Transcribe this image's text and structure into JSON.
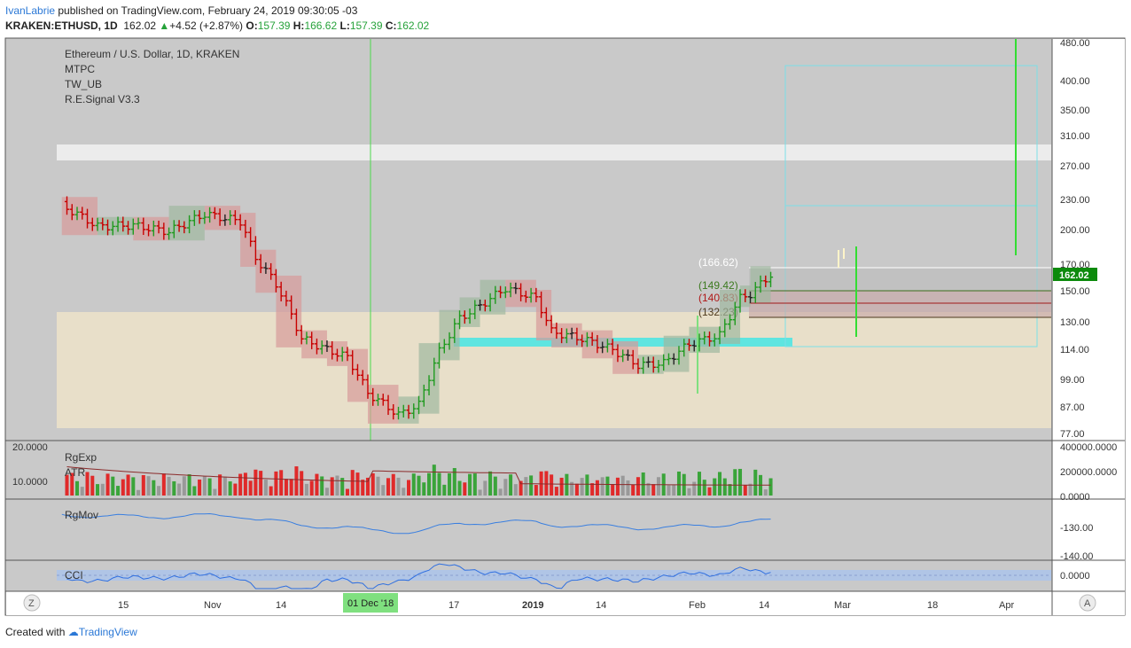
{
  "header": {
    "user": "IvanLabrie",
    "published_text": " published on TradingView.com, February 24, 2019 09:30:05 -03",
    "symbol": "KRAKEN:ETHUSD, 1D",
    "last": "162.02",
    "change_arrow": "▲",
    "change": "+4.52 (+2.87%)",
    "o_label": "O:",
    "o_value": "157.39",
    "h_label": "H:",
    "h_value": "166.62",
    "l_label": "L:",
    "l_value": "157.39",
    "c_label": "C:",
    "c_value": "162.02"
  },
  "legend": {
    "title": "Ethereum / U.S. Dollar, 1D, KRAKEN",
    "indicators": [
      "MTPC",
      "TW_UB",
      "R.E.Signal V3.3"
    ]
  },
  "price_axis": {
    "ticks": [
      "480.00",
      "400.00",
      "350.00",
      "310.00",
      "270.00",
      "230.00",
      "200.00",
      "170.00",
      "150.00",
      "130.00",
      "114.00",
      "99.00",
      "87.00",
      "77.00"
    ],
    "last_price_badge": "162.02"
  },
  "level_labels": [
    "(166.62)",
    "(149.42)",
    "(140.83)",
    "(132.23)"
  ],
  "volume_pane": {
    "names": [
      "RgExp",
      "ATR"
    ],
    "left_ticks": [
      "20.0000",
      "10.0000"
    ],
    "right_ticks": [
      "400000.0000",
      "200000.0000",
      "0.0000"
    ]
  },
  "mov_pane": {
    "name": "RgMov",
    "right_ticks": [
      "-130.00",
      "-140.00"
    ]
  },
  "cci_pane": {
    "name": "CCI",
    "right_ticks": [
      "0.0000"
    ]
  },
  "time_axis": {
    "labels": [
      "15",
      "Nov",
      "14",
      "17",
      "2019",
      "14",
      "Feb",
      "14",
      "Mar",
      "18",
      "Apr"
    ],
    "highlight_label": "01 Dec '18",
    "left_button": "Z",
    "right_button": "A"
  },
  "footer": {
    "created_with": "Created with",
    "brand": "TradingView"
  },
  "colors": {
    "up": "#1f9a1f",
    "down": "#c80000",
    "neutral": "#222222",
    "badge": "#0c8a0c",
    "cci_band": "#aac4ee",
    "line": "#3a7fe0"
  },
  "chart_data": {
    "type": "candlestick",
    "title": "Ethereum / U.S. Dollar, 1D, KRAKEN",
    "y_scale": "log",
    "ylim": [
      77,
      480
    ],
    "x_range": [
      "2018-10-07",
      "2019-04-20"
    ],
    "levels": [
      166.62,
      149.42,
      140.83,
      132.23
    ],
    "last_close": 162.02,
    "close_series": [
      {
        "date": "2018-10-08",
        "close": 224
      },
      {
        "date": "2018-10-15",
        "close": 203
      },
      {
        "date": "2018-10-22",
        "close": 204
      },
      {
        "date": "2018-10-29",
        "close": 198
      },
      {
        "date": "2018-11-05",
        "close": 215
      },
      {
        "date": "2018-11-12",
        "close": 208
      },
      {
        "date": "2018-11-15",
        "close": 175
      },
      {
        "date": "2018-11-19",
        "close": 155
      },
      {
        "date": "2018-11-24",
        "close": 120
      },
      {
        "date": "2018-11-29",
        "close": 114
      },
      {
        "date": "2018-12-03",
        "close": 110
      },
      {
        "date": "2018-12-07",
        "close": 93
      },
      {
        "date": "2018-12-13",
        "close": 84
      },
      {
        "date": "2018-12-17",
        "close": 88
      },
      {
        "date": "2018-12-21",
        "close": 113
      },
      {
        "date": "2018-12-25",
        "close": 132
      },
      {
        "date": "2018-12-29",
        "close": 140
      },
      {
        "date": "2019-01-03",
        "close": 152
      },
      {
        "date": "2019-01-09",
        "close": 145
      },
      {
        "date": "2019-01-12",
        "close": 124
      },
      {
        "date": "2019-01-18",
        "close": 120
      },
      {
        "date": "2019-01-24",
        "close": 114
      },
      {
        "date": "2019-01-29",
        "close": 106
      },
      {
        "date": "2019-02-03",
        "close": 107
      },
      {
        "date": "2019-02-08",
        "close": 117
      },
      {
        "date": "2019-02-14",
        "close": 122
      },
      {
        "date": "2019-02-18",
        "close": 145
      },
      {
        "date": "2019-02-20",
        "close": 148
      },
      {
        "date": "2019-02-24",
        "close": 162.02
      }
    ]
  }
}
